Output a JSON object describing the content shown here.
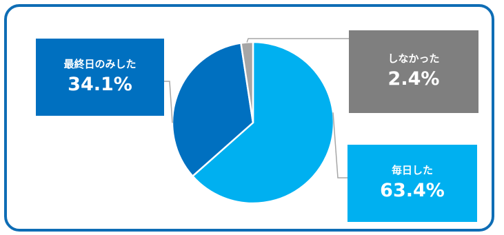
{
  "chart_data": {
    "type": "pie",
    "title": "",
    "slices": [
      {
        "label": "毎日した",
        "value": 63.4,
        "display": "63.4%",
        "color": "#00B0F0"
      },
      {
        "label": "最終日のみした",
        "value": 34.1,
        "display": "34.1%",
        "color": "#0070C0"
      },
      {
        "label": "しなかった",
        "value": 2.4,
        "display": "2.4%",
        "color": "#A6A6A6"
      }
    ],
    "start": "12 o'clock",
    "direction": "clockwise",
    "callout_colors": {
      "毎日した": "#00B0F0",
      "最終日のみした": "#0070C0",
      "しなかった": "#7F7F7F"
    },
    "frame_color": "#0E6DB5",
    "leader_line_color": "#A6A6A6"
  }
}
